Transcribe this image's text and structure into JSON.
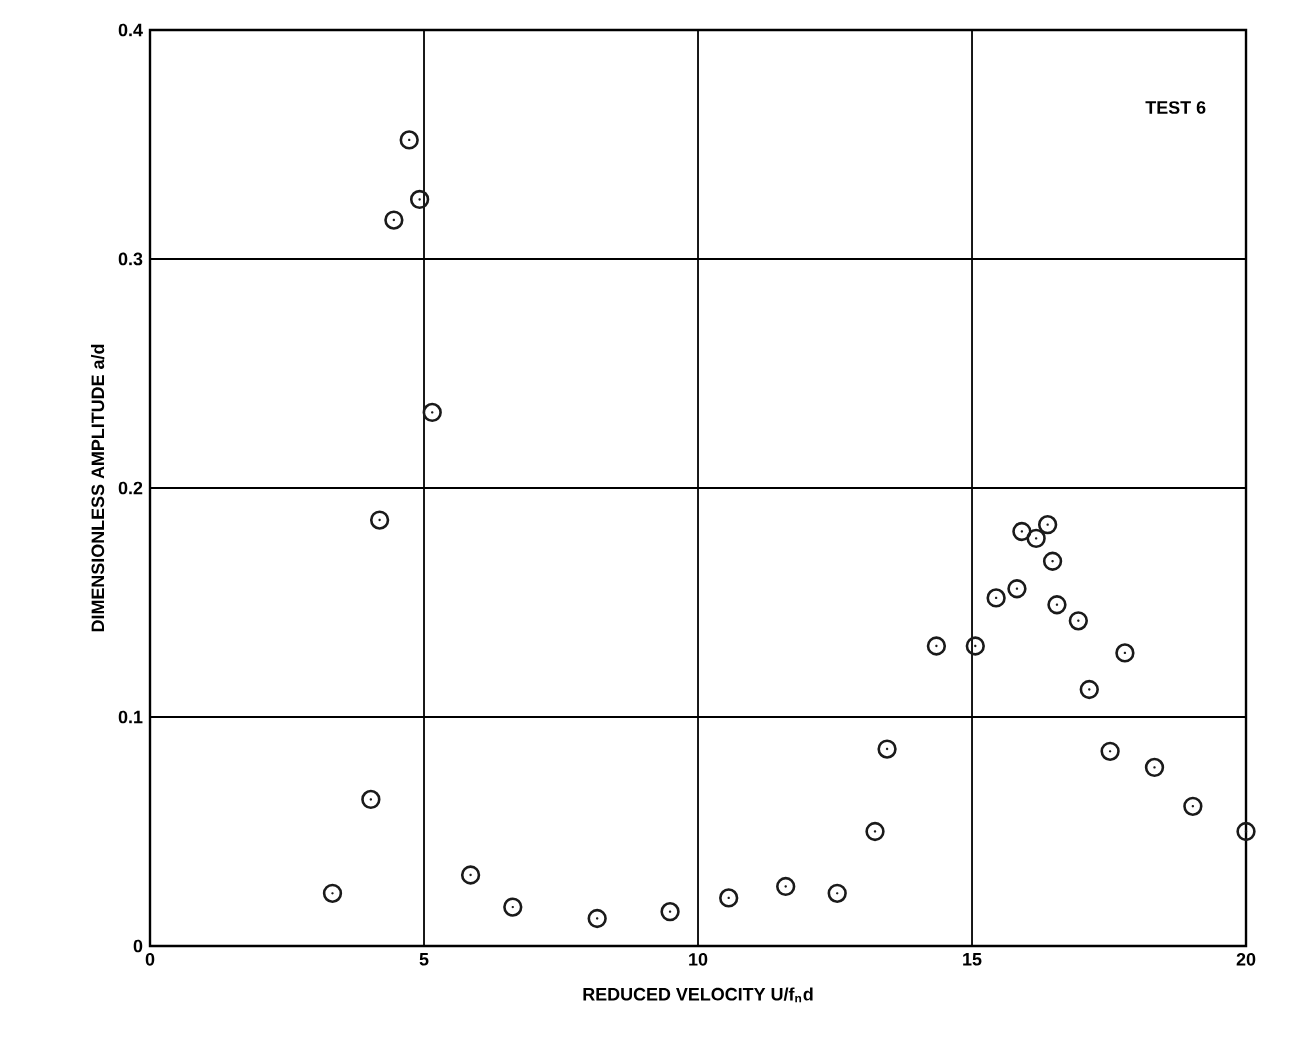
{
  "chart_data": {
    "type": "scatter",
    "xlabel": "REDUCED VELOCITY  U/f$_{n}$d",
    "ylabel": "DIMENSIONLESS AMPLITUDE  a/d",
    "annotations": [
      "TEST 6"
    ],
    "series": [
      {
        "color": "#1a1a1a",
        "x": [
          3.33,
          4.03,
          4.19,
          4.45,
          4.73,
          4.92,
          5.15,
          5.85,
          6.62,
          8.16,
          9.49,
          10.56,
          11.6,
          12.54,
          13.23,
          13.45,
          14.35,
          15.06,
          15.44,
          15.82,
          15.91,
          16.17,
          16.38,
          16.47,
          16.55,
          16.94,
          17.14,
          17.79,
          17.52,
          18.33,
          19.03,
          20.0
        ],
        "values": [
          0.023,
          0.064,
          0.186,
          0.317,
          0.352,
          0.326,
          0.233,
          0.031,
          0.017,
          0.012,
          0.015,
          0.021,
          0.026,
          0.023,
          0.05,
          0.086,
          0.131,
          0.131,
          0.152,
          0.156,
          0.181,
          0.178,
          0.184,
          0.168,
          0.149,
          0.142,
          0.112,
          0.128,
          0.085,
          0.078,
          0.061,
          0.05
        ]
      }
    ],
    "xlim": [
      0,
      20
    ],
    "ylim": [
      0,
      0.4
    ],
    "xticks": [
      0,
      5,
      10,
      15,
      20
    ],
    "yticks": [
      0,
      0.1,
      0.2,
      0.3,
      0.4
    ],
    "grid": true,
    "marker": "circle"
  }
}
